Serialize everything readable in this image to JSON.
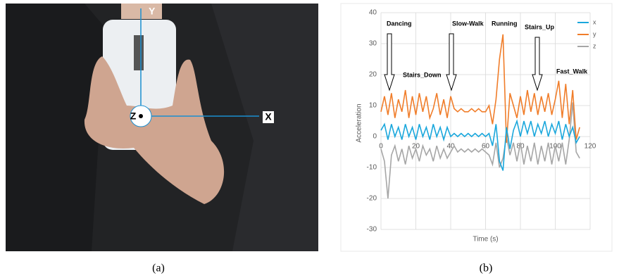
{
  "photo": {
    "axis_labels": [
      "Y",
      "Z",
      "X"
    ],
    "caption": "(a)"
  },
  "chart_data": {
    "type": "line",
    "caption": "(b)",
    "x_label": "Time (s)",
    "y_label": "Acceleration",
    "annotations": [
      "Dancing",
      "Stairs_Down",
      "Slow-Walk",
      "Running",
      "Stairs_Up",
      "Fast_Walk"
    ],
    "x": [
      0,
      2,
      4,
      6,
      8,
      10,
      12,
      14,
      16,
      18,
      20,
      22,
      24,
      26,
      28,
      30,
      32,
      34,
      36,
      38,
      40,
      42,
      44,
      46,
      48,
      50,
      52,
      54,
      56,
      58,
      60,
      62,
      64,
      66,
      68,
      70,
      72,
      74,
      76,
      78,
      80,
      82,
      84,
      86,
      88,
      90,
      92,
      94,
      96,
      98,
      100,
      102,
      104,
      106,
      108,
      110,
      112,
      114
    ],
    "series": [
      {
        "name": "x",
        "color": "#1aa7dc",
        "values": [
          2,
          4,
          -1,
          4,
          0,
          3,
          -1,
          4,
          0,
          3,
          -1,
          4,
          0,
          3,
          -1,
          4,
          0,
          3,
          -1,
          3,
          0,
          1,
          0,
          1,
          0,
          1,
          0,
          1,
          0,
          1,
          0,
          1,
          -3,
          4,
          -8,
          -11,
          3,
          -4,
          2,
          5,
          0,
          5,
          1,
          5,
          0,
          4,
          1,
          5,
          0,
          4,
          1,
          5,
          -1,
          4,
          0,
          3,
          -2,
          0
        ]
      },
      {
        "name": "y",
        "color": "#f07d2a",
        "values": [
          8,
          13,
          7,
          14,
          6,
          12,
          8,
          15,
          6,
          13,
          7,
          14,
          8,
          13,
          6,
          9,
          14,
          7,
          12,
          6,
          13,
          9,
          8,
          9,
          8,
          8,
          9,
          8,
          9,
          8,
          8,
          10,
          4,
          12,
          25,
          33,
          -2,
          14,
          10,
          6,
          13,
          7,
          15,
          8,
          14,
          7,
          13,
          8,
          14,
          7,
          12,
          18,
          6,
          17,
          4,
          15,
          -1,
          3
        ]
      },
      {
        "name": "z",
        "color": "#a6a6a6",
        "values": [
          -4,
          -8,
          -20,
          -6,
          -3,
          -8,
          -4,
          -9,
          -3,
          -7,
          -4,
          -8,
          -3,
          -6,
          -4,
          -8,
          -3,
          -7,
          -4,
          -7,
          -5,
          -3,
          -5,
          -4,
          -5,
          -4,
          -5,
          -4,
          -5,
          -4,
          -5,
          -6,
          -9,
          -2,
          -10,
          -7,
          0,
          -6,
          -2,
          -8,
          -2,
          -9,
          -3,
          -8,
          -2,
          -9,
          -3,
          -8,
          -2,
          -9,
          -3,
          -8,
          -2,
          -9,
          -1,
          11,
          -5,
          -7
        ]
      }
    ],
    "xlim": [
      0,
      120
    ],
    "xticks": [
      0,
      20,
      40,
      60,
      80,
      100,
      120
    ],
    "ylim": [
      -30,
      40
    ],
    "yticks": [
      -30,
      -20,
      -10,
      0,
      10,
      20,
      30,
      40
    ],
    "grid": true,
    "legend": "right"
  }
}
